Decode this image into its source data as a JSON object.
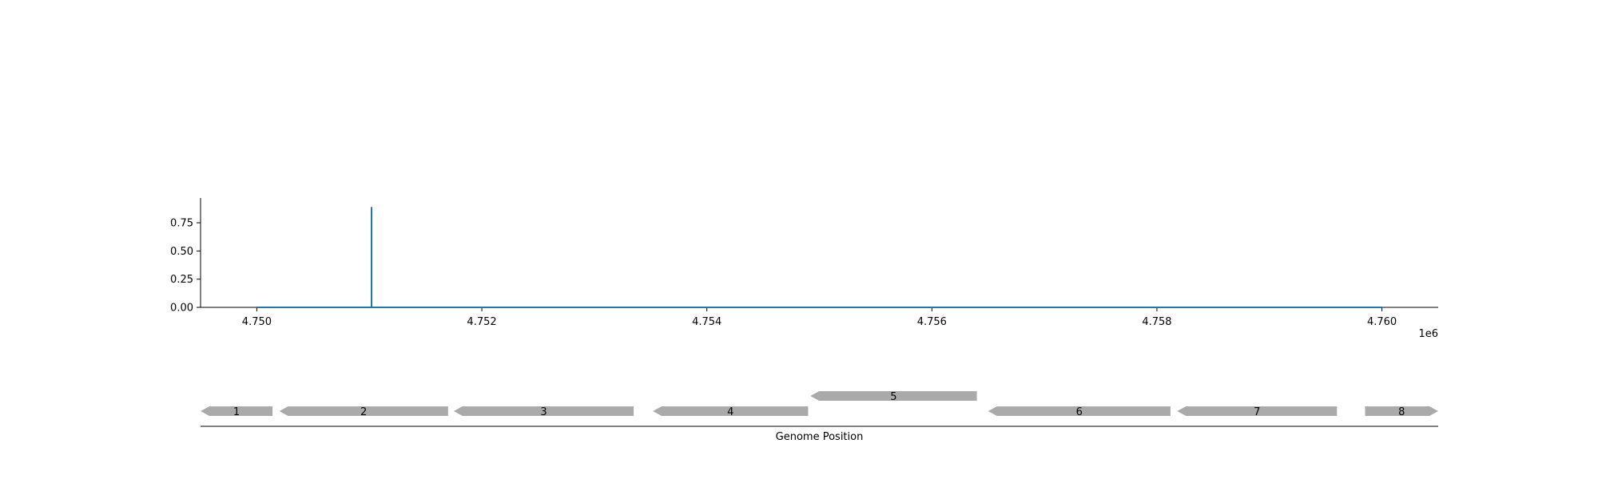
{
  "chart_data": [
    {
      "type": "line",
      "title": "",
      "xlabel": "",
      "ylabel": "",
      "x_offset_label": "1e6",
      "xlim": [
        4749500,
        4760500
      ],
      "ylim": [
        0,
        0.97
      ],
      "x_ticks": [
        4750000,
        4752000,
        4754000,
        4756000,
        4758000,
        4760000
      ],
      "x_tick_labels": [
        "4.750",
        "4.752",
        "4.754",
        "4.756",
        "4.758",
        "4.760"
      ],
      "y_ticks": [
        0,
        0.25,
        0.5,
        0.75
      ],
      "y_tick_labels": [
        "0.00",
        "0.25",
        "0.50",
        "0.75"
      ],
      "grid": false,
      "color": "#1f77b4",
      "series": [
        {
          "x": [
            4750000,
            4751020,
            4751020,
            4751020,
            4760000
          ],
          "y": [
            0,
            0,
            0.89,
            0,
            0
          ]
        }
      ]
    },
    {
      "type": "gene_track",
      "xlabel": "Genome Position",
      "xlim": [
        4749500,
        4760500
      ],
      "color": "#aaaaaa",
      "genes": [
        {
          "label": "1",
          "start": 4749500,
          "end": 4750140,
          "strand": "-",
          "row": 0
        },
        {
          "label": "2",
          "start": 4750200,
          "end": 4751700,
          "strand": "-",
          "row": 0
        },
        {
          "label": "3",
          "start": 4751750,
          "end": 4753350,
          "strand": "-",
          "row": 0
        },
        {
          "label": "4",
          "start": 4753520,
          "end": 4754900,
          "strand": "-",
          "row": 0
        },
        {
          "label": "5",
          "start": 4754920,
          "end": 4756400,
          "strand": "-",
          "row": 1
        },
        {
          "label": "6",
          "start": 4756500,
          "end": 4758120,
          "strand": "-",
          "row": 0
        },
        {
          "label": "7",
          "start": 4758180,
          "end": 4759600,
          "strand": "-",
          "row": 0
        },
        {
          "label": "8",
          "start": 4759850,
          "end": 4760500,
          "strand": "+",
          "row": 0
        }
      ]
    }
  ]
}
